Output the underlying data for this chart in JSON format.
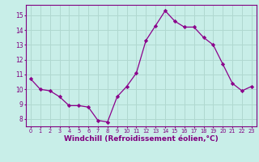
{
  "x": [
    0,
    1,
    2,
    3,
    4,
    5,
    6,
    7,
    8,
    9,
    10,
    11,
    12,
    13,
    14,
    15,
    16,
    17,
    18,
    19,
    20,
    21,
    22,
    23
  ],
  "y": [
    10.7,
    10.0,
    9.9,
    9.5,
    8.9,
    8.9,
    8.8,
    7.9,
    7.8,
    9.5,
    10.2,
    11.1,
    13.3,
    14.3,
    15.3,
    14.6,
    14.2,
    14.2,
    13.5,
    13.0,
    11.7,
    10.4,
    9.9,
    10.2
  ],
  "line_color": "#8B008B",
  "marker": "D",
  "marker_size": 2.2,
  "xlabel": "Windchill (Refroidissement éolien,°C)",
  "xlabel_fontsize": 6.5,
  "ylabel_ticks": [
    8,
    9,
    10,
    11,
    12,
    13,
    14,
    15
  ],
  "ylim": [
    7.5,
    15.7
  ],
  "xlim": [
    -0.5,
    23.5
  ],
  "background_color": "#c8eee8",
  "grid_color": "#b0d8d0",
  "tick_color": "#800080",
  "label_color": "#800080",
  "spine_color": "#800080"
}
